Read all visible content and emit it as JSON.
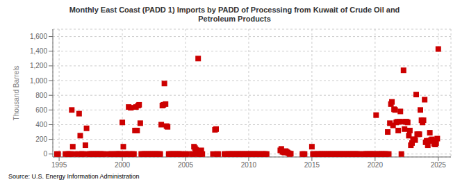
{
  "chart_data": {
    "type": "scatter",
    "title": "Monthly East Coast (PADD 1) Imports by PADD of Processing from Kuwait of Crude Oil and\nPetroleum Products",
    "ylabel": "Thousand Barrels",
    "annotations": [
      "Source: U.S. Energy Information Administration"
    ],
    "color": "#cc0000",
    "marker": "square",
    "grid": true,
    "xlim": [
      1994.5,
      2026
    ],
    "ylim": [
      -40,
      1700
    ],
    "xticks": [
      1995,
      2000,
      2005,
      2010,
      2015,
      2020,
      2025
    ],
    "yticks": [
      0,
      200,
      400,
      600,
      800,
      {
        "value": 1000,
        "label": "1,000"
      },
      {
        "value": 1200,
        "label": "1,200"
      },
      {
        "value": 1400,
        "label": "1,400"
      },
      {
        "value": 1600,
        "label": "1,600"
      }
    ],
    "x": [
      1994.83,
      1994.92,
      1995.5,
      1995.67,
      1995.75,
      1995.83,
      1995.92,
      1996.0,
      1996.08,
      1996.25,
      1996.5,
      1996.58,
      1996.67,
      1996.75,
      1996.83,
      1996.92,
      1997.08,
      1997.17,
      1997.33,
      1997.42,
      1997.5,
      1997.58,
      1997.67,
      1997.75,
      1997.83,
      1997.92,
      1998.0,
      1998.08,
      1998.17,
      1998.25,
      1998.33,
      1998.5,
      1998.58,
      1999.0,
      1999.08,
      1999.17,
      1999.42,
      1999.5,
      1999.58,
      1999.67,
      1999.75,
      1999.83,
      1999.92,
      2000.0,
      2000.08,
      2000.17,
      2000.25,
      2000.33,
      2000.42,
      2000.5,
      2000.58,
      2000.67,
      2000.75,
      2000.83,
      2000.92,
      2001.0,
      2001.08,
      2001.17,
      2001.25,
      2001.33,
      2001.42,
      2001.5,
      2001.58,
      2001.67,
      2001.75,
      2001.83,
      2001.92,
      2002.0,
      2002.08,
      2002.17,
      2002.25,
      2002.33,
      2002.42,
      2002.5,
      2002.58,
      2002.67,
      2002.75,
      2002.83,
      2002.92,
      2003.0,
      2003.08,
      2003.17,
      2003.25,
      2003.33,
      2003.42,
      2003.5,
      2003.58,
      2003.67,
      2003.75,
      2003.83,
      2003.92,
      2004.0,
      2004.08,
      2004.17,
      2004.25,
      2004.33,
      2004.42,
      2004.5,
      2004.58,
      2004.67,
      2005.0,
      2005.08,
      2005.5,
      2005.58,
      2005.67,
      2005.75,
      2005.83,
      2005.92,
      2006.0,
      2006.08,
      2006.17,
      2006.25,
      2006.33,
      2007.17,
      2007.33,
      2007.42,
      2007.5,
      2007.58,
      2008.08,
      2008.17,
      2008.33,
      2008.42,
      2008.5,
      2008.58,
      2008.67,
      2008.75,
      2008.83,
      2008.92,
      2009.0,
      2009.08,
      2009.17,
      2009.25,
      2009.33,
      2009.42,
      2009.5,
      2009.58,
      2009.67,
      2009.75,
      2009.83,
      2009.92,
      2010.0,
      2010.08,
      2010.17,
      2010.25,
      2010.33,
      2010.42,
      2010.5,
      2010.58,
      2010.67,
      2010.75,
      2010.83,
      2011.0,
      2011.08,
      2011.17,
      2011.25,
      2011.33,
      2011.42,
      2012.5,
      2012.58,
      2012.67,
      2012.75,
      2012.83,
      2012.92,
      2013.0,
      2013.08,
      2013.17,
      2013.25,
      2013.33,
      2014.25,
      2014.33,
      2014.42,
      2015.0,
      2015.08,
      2015.17,
      2015.25,
      2015.42,
      2015.5,
      2015.58,
      2015.67,
      2015.75,
      2015.83,
      2015.92,
      2016.0,
      2016.08,
      2016.17,
      2016.25,
      2016.33,
      2016.42,
      2016.5,
      2016.58,
      2016.67,
      2016.75,
      2016.83,
      2016.92,
      2017.0,
      2017.08,
      2017.17,
      2017.25,
      2017.33,
      2017.42,
      2017.5,
      2017.58,
      2017.67,
      2017.75,
      2017.83,
      2017.92,
      2018.0,
      2018.08,
      2018.17,
      2018.25,
      2018.33,
      2018.42,
      2018.5,
      2018.58,
      2018.67,
      2018.75,
      2019.08,
      2019.17,
      2019.25,
      2019.33,
      2019.42,
      2019.5,
      2019.58,
      2019.67,
      2019.75,
      2019.83,
      2019.92,
      2020.0,
      2020.08,
      2020.17,
      2020.25,
      2020.33,
      2020.42,
      2020.5,
      2020.58,
      2020.67,
      2020.75,
      2020.83,
      2020.92,
      2021.0,
      2021.08,
      2021.17,
      2021.25,
      2021.33,
      2021.42,
      2021.5,
      2021.58,
      2021.67,
      2021.75,
      2021.83,
      2021.92,
      2022.0,
      2022.08,
      2022.17,
      2022.25,
      2022.33,
      2022.42,
      2022.5,
      2022.58,
      2022.67,
      2022.75,
      2022.83,
      2022.92,
      2023.0,
      2023.08,
      2023.17,
      2023.25,
      2023.33,
      2023.42,
      2023.5,
      2023.58,
      2023.67,
      2023.75,
      2023.83,
      2023.92,
      2024.0,
      2024.08,
      2024.17,
      2024.25,
      2024.33,
      2024.42,
      2024.5,
      2024.58,
      2024.67,
      2024.75,
      2024.83,
      2024.92,
      2025.0
    ],
    "values": [
      0,
      0,
      0,
      0,
      0,
      0,
      0,
      600,
      100,
      0,
      0,
      550,
      250,
      0,
      0,
      0,
      120,
      350,
      0,
      0,
      0,
      0,
      0,
      0,
      0,
      0,
      0,
      0,
      0,
      0,
      0,
      0,
      0,
      0,
      0,
      0,
      0,
      0,
      0,
      0,
      0,
      0,
      0,
      430,
      100,
      0,
      0,
      0,
      0,
      640,
      0,
      630,
      0,
      0,
      0,
      320,
      640,
      320,
      660,
      670,
      420,
      0,
      0,
      0,
      0,
      0,
      0,
      0,
      0,
      0,
      0,
      0,
      0,
      0,
      0,
      0,
      0,
      0,
      0,
      0,
      400,
      660,
      670,
      960,
      680,
      380,
      370,
      0,
      0,
      0,
      0,
      0,
      0,
      0,
      0,
      0,
      0,
      0,
      0,
      0,
      0,
      0,
      0,
      0,
      100,
      80,
      60,
      0,
      1300,
      0,
      0,
      50,
      0,
      0,
      330,
      340,
      0,
      0,
      0,
      0,
      0,
      0,
      0,
      0,
      0,
      0,
      0,
      0,
      0,
      0,
      0,
      0,
      0,
      0,
      0,
      0,
      0,
      0,
      0,
      0,
      0,
      0,
      0,
      0,
      0,
      0,
      0,
      0,
      0,
      0,
      0,
      0,
      0,
      0,
      0,
      0,
      0,
      50,
      70,
      30,
      30,
      20,
      40,
      30,
      20,
      10,
      0,
      5,
      0,
      0,
      0,
      100,
      0,
      0,
      0,
      0,
      0,
      0,
      0,
      0,
      0,
      0,
      0,
      0,
      0,
      0,
      0,
      0,
      0,
      0,
      0,
      0,
      0,
      0,
      0,
      0,
      0,
      0,
      0,
      0,
      0,
      0,
      0,
      0,
      0,
      0,
      0,
      0,
      0,
      0,
      0,
      0,
      0,
      0,
      0,
      0,
      0,
      0,
      0,
      0,
      0,
      0,
      0,
      0,
      0,
      0,
      0,
      0,
      530,
      0,
      0,
      0,
      0,
      0,
      0,
      0,
      0,
      0,
      0,
      300,
      0,
      420,
      680,
      710,
      390,
      610,
      600,
      430,
      440,
      320,
      440,
      580,
      0,
      440,
      1140,
      340,
      440,
      440,
      430,
      250,
      320,
      120,
      150,
      200,
      200,
      190,
      810,
      270,
      270,
      270,
      600,
      460,
      430,
      460,
      740,
      160,
      180,
      120,
      180,
      290,
      190,
      200,
      180,
      140,
      130,
      150,
      210,
      1430
    ]
  }
}
